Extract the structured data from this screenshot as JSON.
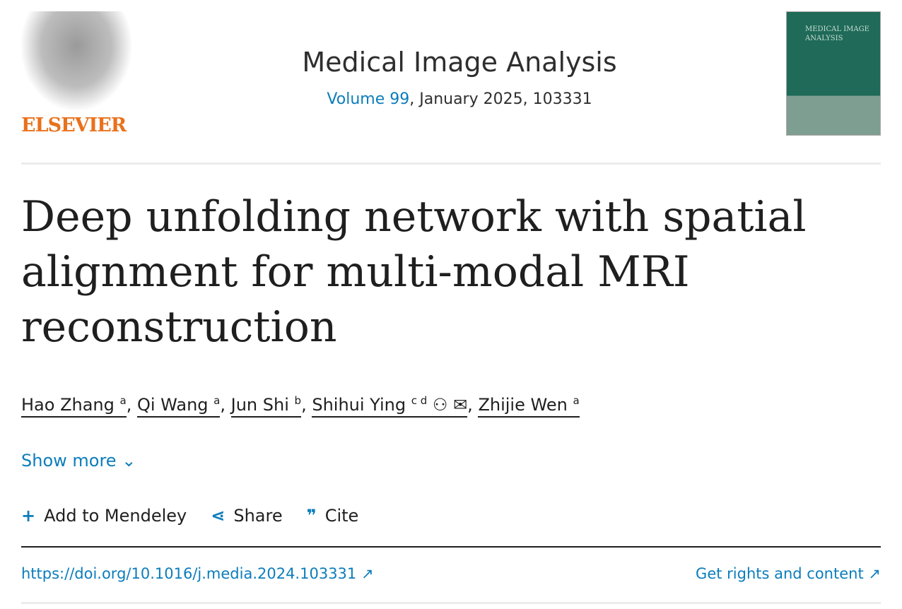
{
  "publisher": {
    "name": "ELSEVIER"
  },
  "journal": {
    "name": "Medical Image Analysis",
    "volume_link": "Volume 99",
    "issue_info": ", January 2025, 103331",
    "cover_title": "MEDICAL IMAGE ANALYSIS"
  },
  "article": {
    "title": "Deep unfolding network with spatial alignment for multi-modal MRI reconstruction"
  },
  "authors": [
    {
      "name": "Hao Zhang",
      "aff": "a"
    },
    {
      "name": "Qi Wang",
      "aff": "a"
    },
    {
      "name": "Jun Shi",
      "aff": "b"
    },
    {
      "name": "Shihui Ying",
      "aff": "c d"
    },
    {
      "name": "Zhijie Wen",
      "aff": "a"
    }
  ],
  "show_more": "Show more",
  "actions": {
    "mendeley": "Add to Mendeley",
    "share": "Share",
    "cite": "Cite"
  },
  "doi": "https://doi.org/10.1016/j.media.2024.103331",
  "rights": "Get rights and content",
  "colors": {
    "link": "#0c7dbb",
    "elsevier_orange": "#e9711c"
  }
}
